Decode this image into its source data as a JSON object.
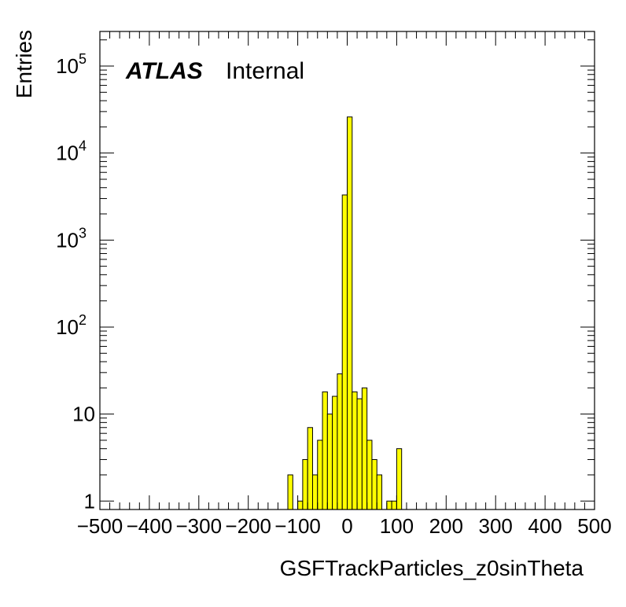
{
  "chart_data": {
    "type": "bar",
    "histogram": true,
    "xlabel": "GSFTrackParticles_z0sinTheta",
    "ylabel": "Entries",
    "xlim": [
      -500,
      500
    ],
    "ylim": [
      0.8,
      250000
    ],
    "yscale": "log",
    "bin_width": 10,
    "fill_color": "#ffff00",
    "line_color": "#000000",
    "grid": false,
    "x_ticks": [
      -500,
      -400,
      -300,
      -200,
      -100,
      0,
      100,
      200,
      300,
      400,
      500
    ],
    "x_tick_labels": [
      "−500",
      "−400",
      "−300",
      "−200",
      "−100",
      "0",
      "100",
      "200",
      "300",
      "400",
      "500"
    ],
    "y_tick_labels": [
      {
        "value": 1,
        "base": "1",
        "exp": ""
      },
      {
        "value": 10,
        "base": "10",
        "exp": ""
      },
      {
        "value": 100,
        "base": "10",
        "exp": "2"
      },
      {
        "value": 1000,
        "base": "10",
        "exp": "3"
      },
      {
        "value": 10000,
        "base": "10",
        "exp": "4"
      },
      {
        "value": 100000,
        "base": "10",
        "exp": "5"
      }
    ],
    "bins": [
      {
        "x": -120,
        "y": 2
      },
      {
        "x": -110,
        "y": 0
      },
      {
        "x": -100,
        "y": 1
      },
      {
        "x": -90,
        "y": 3
      },
      {
        "x": -80,
        "y": 7
      },
      {
        "x": -70,
        "y": 2
      },
      {
        "x": -60,
        "y": 5
      },
      {
        "x": -50,
        "y": 18
      },
      {
        "x": -40,
        "y": 10
      },
      {
        "x": -30,
        "y": 16
      },
      {
        "x": -20,
        "y": 29
      },
      {
        "x": -10,
        "y": 3300
      },
      {
        "x": 0,
        "y": 26000
      },
      {
        "x": 10,
        "y": 18
      },
      {
        "x": 20,
        "y": 15
      },
      {
        "x": 30,
        "y": 20
      },
      {
        "x": 40,
        "y": 5
      },
      {
        "x": 50,
        "y": 3
      },
      {
        "x": 60,
        "y": 2
      },
      {
        "x": 70,
        "y": 0
      },
      {
        "x": 80,
        "y": 1
      },
      {
        "x": 90,
        "y": 1
      },
      {
        "x": 100,
        "y": 4
      }
    ],
    "annotations": {
      "atlas": "ATLAS",
      "status": "Internal"
    }
  }
}
